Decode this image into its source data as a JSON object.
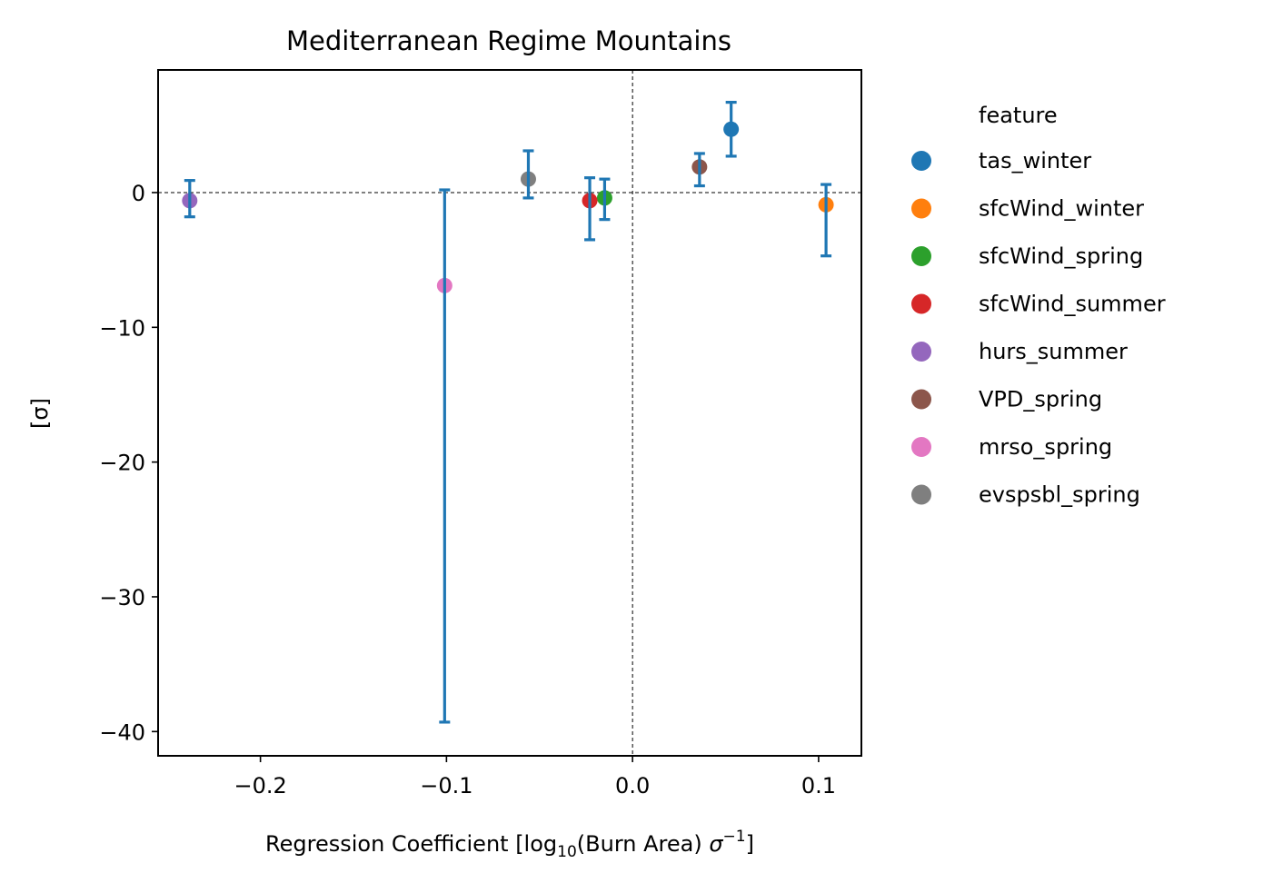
{
  "chart_data": {
    "type": "scatter",
    "title": "Mediterranean Regime Mountains",
    "xlabel": {
      "prefix": "Regression Coefficient [log",
      "sub": "10",
      "middle": "(Burn Area) ",
      "sigma": "σ",
      "sup": "−1",
      "suffix": "]"
    },
    "ylabel": "[σ]",
    "xlim": [
      -0.255,
      0.123
    ],
    "ylim": [
      -41.8,
      9.1
    ],
    "xticks": [
      {
        "value": -0.2,
        "label": "−0.2"
      },
      {
        "value": -0.1,
        "label": "−0.1"
      },
      {
        "value": 0.0,
        "label": "0.0"
      },
      {
        "value": 0.1,
        "label": "0.1"
      }
    ],
    "yticks": [
      {
        "value": 0,
        "label": "0"
      },
      {
        "value": -10,
        "label": "−10"
      },
      {
        "value": -20,
        "label": "−20"
      },
      {
        "value": -30,
        "label": "−30"
      },
      {
        "value": -40,
        "label": "−40"
      }
    ],
    "reference_lines": {
      "x": 0,
      "y": 0,
      "style": "dashed"
    },
    "errorbar_color": "#1f77b4",
    "legend": {
      "title": "feature",
      "position": "outside-right"
    },
    "points": [
      {
        "feature": "tas_winter",
        "x": 0.053,
        "y": 4.7,
        "err_low": 2.7,
        "err_high": 6.7,
        "color": "#1f77b4"
      },
      {
        "feature": "sfcWind_winter",
        "x": 0.104,
        "y": -0.9,
        "err_low": -4.7,
        "err_high": 0.6,
        "color": "#ff7f0e"
      },
      {
        "feature": "sfcWind_spring",
        "x": -0.015,
        "y": -0.4,
        "err_low": -2.0,
        "err_high": 1.0,
        "color": "#2ca02c"
      },
      {
        "feature": "sfcWind_summer",
        "x": -0.023,
        "y": -0.6,
        "err_low": -3.5,
        "err_high": 1.1,
        "color": "#d62728"
      },
      {
        "feature": "hurs_summer",
        "x": -0.238,
        "y": -0.6,
        "err_low": -1.8,
        "err_high": 0.9,
        "color": "#9467bd"
      },
      {
        "feature": "VPD_spring",
        "x": 0.036,
        "y": 1.9,
        "err_low": 0.5,
        "err_high": 2.9,
        "color": "#8c564b"
      },
      {
        "feature": "mrso_spring",
        "x": -0.101,
        "y": -6.9,
        "err_low": -39.3,
        "err_high": 0.2,
        "color": "#e377c2"
      },
      {
        "feature": "evspsbl_spring",
        "x": -0.056,
        "y": 1.0,
        "err_low": -0.4,
        "err_high": 3.1,
        "color": "#7f7f7f"
      }
    ]
  }
}
